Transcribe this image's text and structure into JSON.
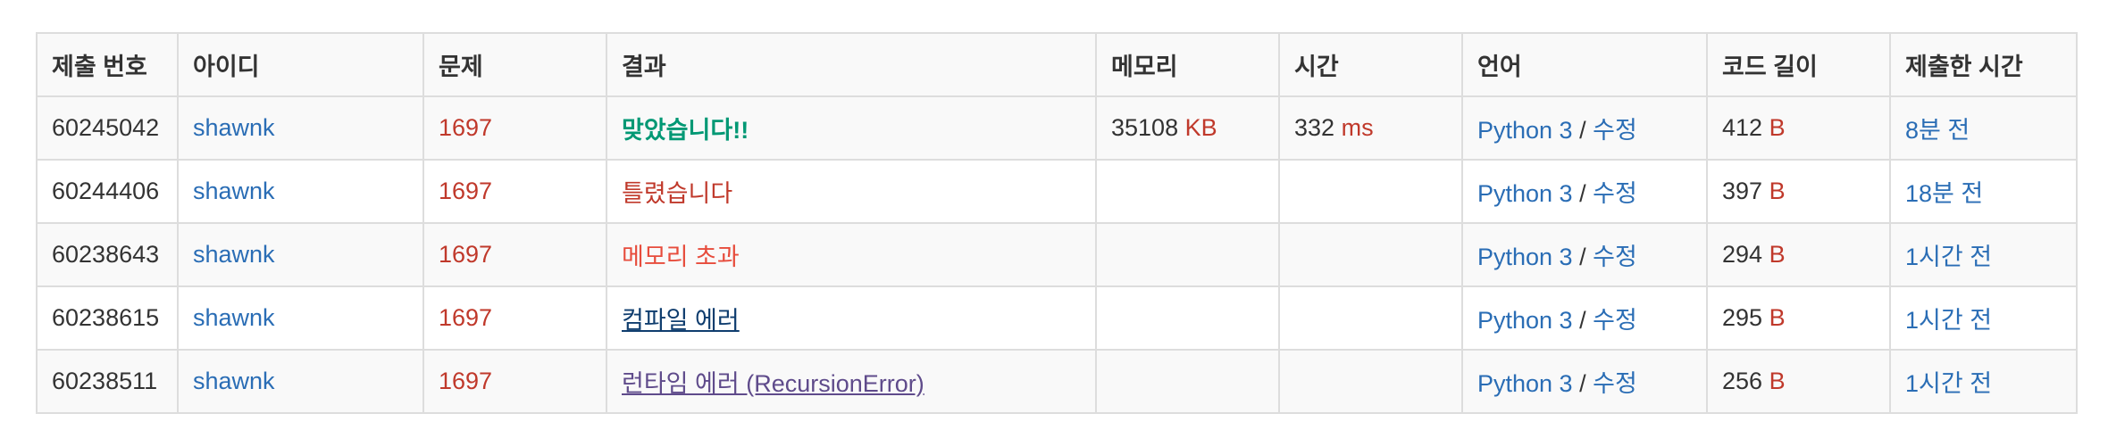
{
  "columns": [
    "제출 번호",
    "아이디",
    "문제",
    "결과",
    "메모리",
    "시간",
    "언어",
    "코드 길이",
    "제출한 시간"
  ],
  "units": {
    "memory": "KB",
    "time": "ms",
    "code_length": "B"
  },
  "language_edit_separator": "/",
  "rows": [
    {
      "submission_id": "60245042",
      "user": "shawnk",
      "problem": "1697",
      "result": "맞았습니다!!",
      "result_type": "accepted",
      "memory": "35108",
      "time": "332",
      "language": "Python 3",
      "edit": "수정",
      "code_length": "412",
      "submitted": "8분 전"
    },
    {
      "submission_id": "60244406",
      "user": "shawnk",
      "problem": "1697",
      "result": "틀렸습니다",
      "result_type": "wrong",
      "memory": "",
      "time": "",
      "language": "Python 3",
      "edit": "수정",
      "code_length": "397",
      "submitted": "18분 전"
    },
    {
      "submission_id": "60238643",
      "user": "shawnk",
      "problem": "1697",
      "result": "메모리 초과",
      "result_type": "memory-limit",
      "memory": "",
      "time": "",
      "language": "Python 3",
      "edit": "수정",
      "code_length": "294",
      "submitted": "1시간 전"
    },
    {
      "submission_id": "60238615",
      "user": "shawnk",
      "problem": "1697",
      "result": "컴파일 에러",
      "result_type": "compile-error",
      "memory": "",
      "time": "",
      "language": "Python 3",
      "edit": "수정",
      "code_length": "295",
      "submitted": "1시간 전"
    },
    {
      "submission_id": "60238511",
      "user": "shawnk",
      "problem": "1697",
      "result": "런타임 에러 (RecursionError)",
      "result_type": "runtime-error",
      "memory": "",
      "time": "",
      "language": "Python 3",
      "edit": "수정",
      "code_length": "256",
      "submitted": "1시간 전"
    }
  ],
  "colors": {
    "link": "#2a6db5",
    "problem": "#c0392b",
    "accepted": "#009874",
    "wrong": "#c0392b",
    "memory_limit": "#e74c3c",
    "compile_error": "#0f3d6e",
    "runtime_error": "#5f4b8b",
    "border": "#dddddd",
    "stripe": "#f9f9f9"
  }
}
